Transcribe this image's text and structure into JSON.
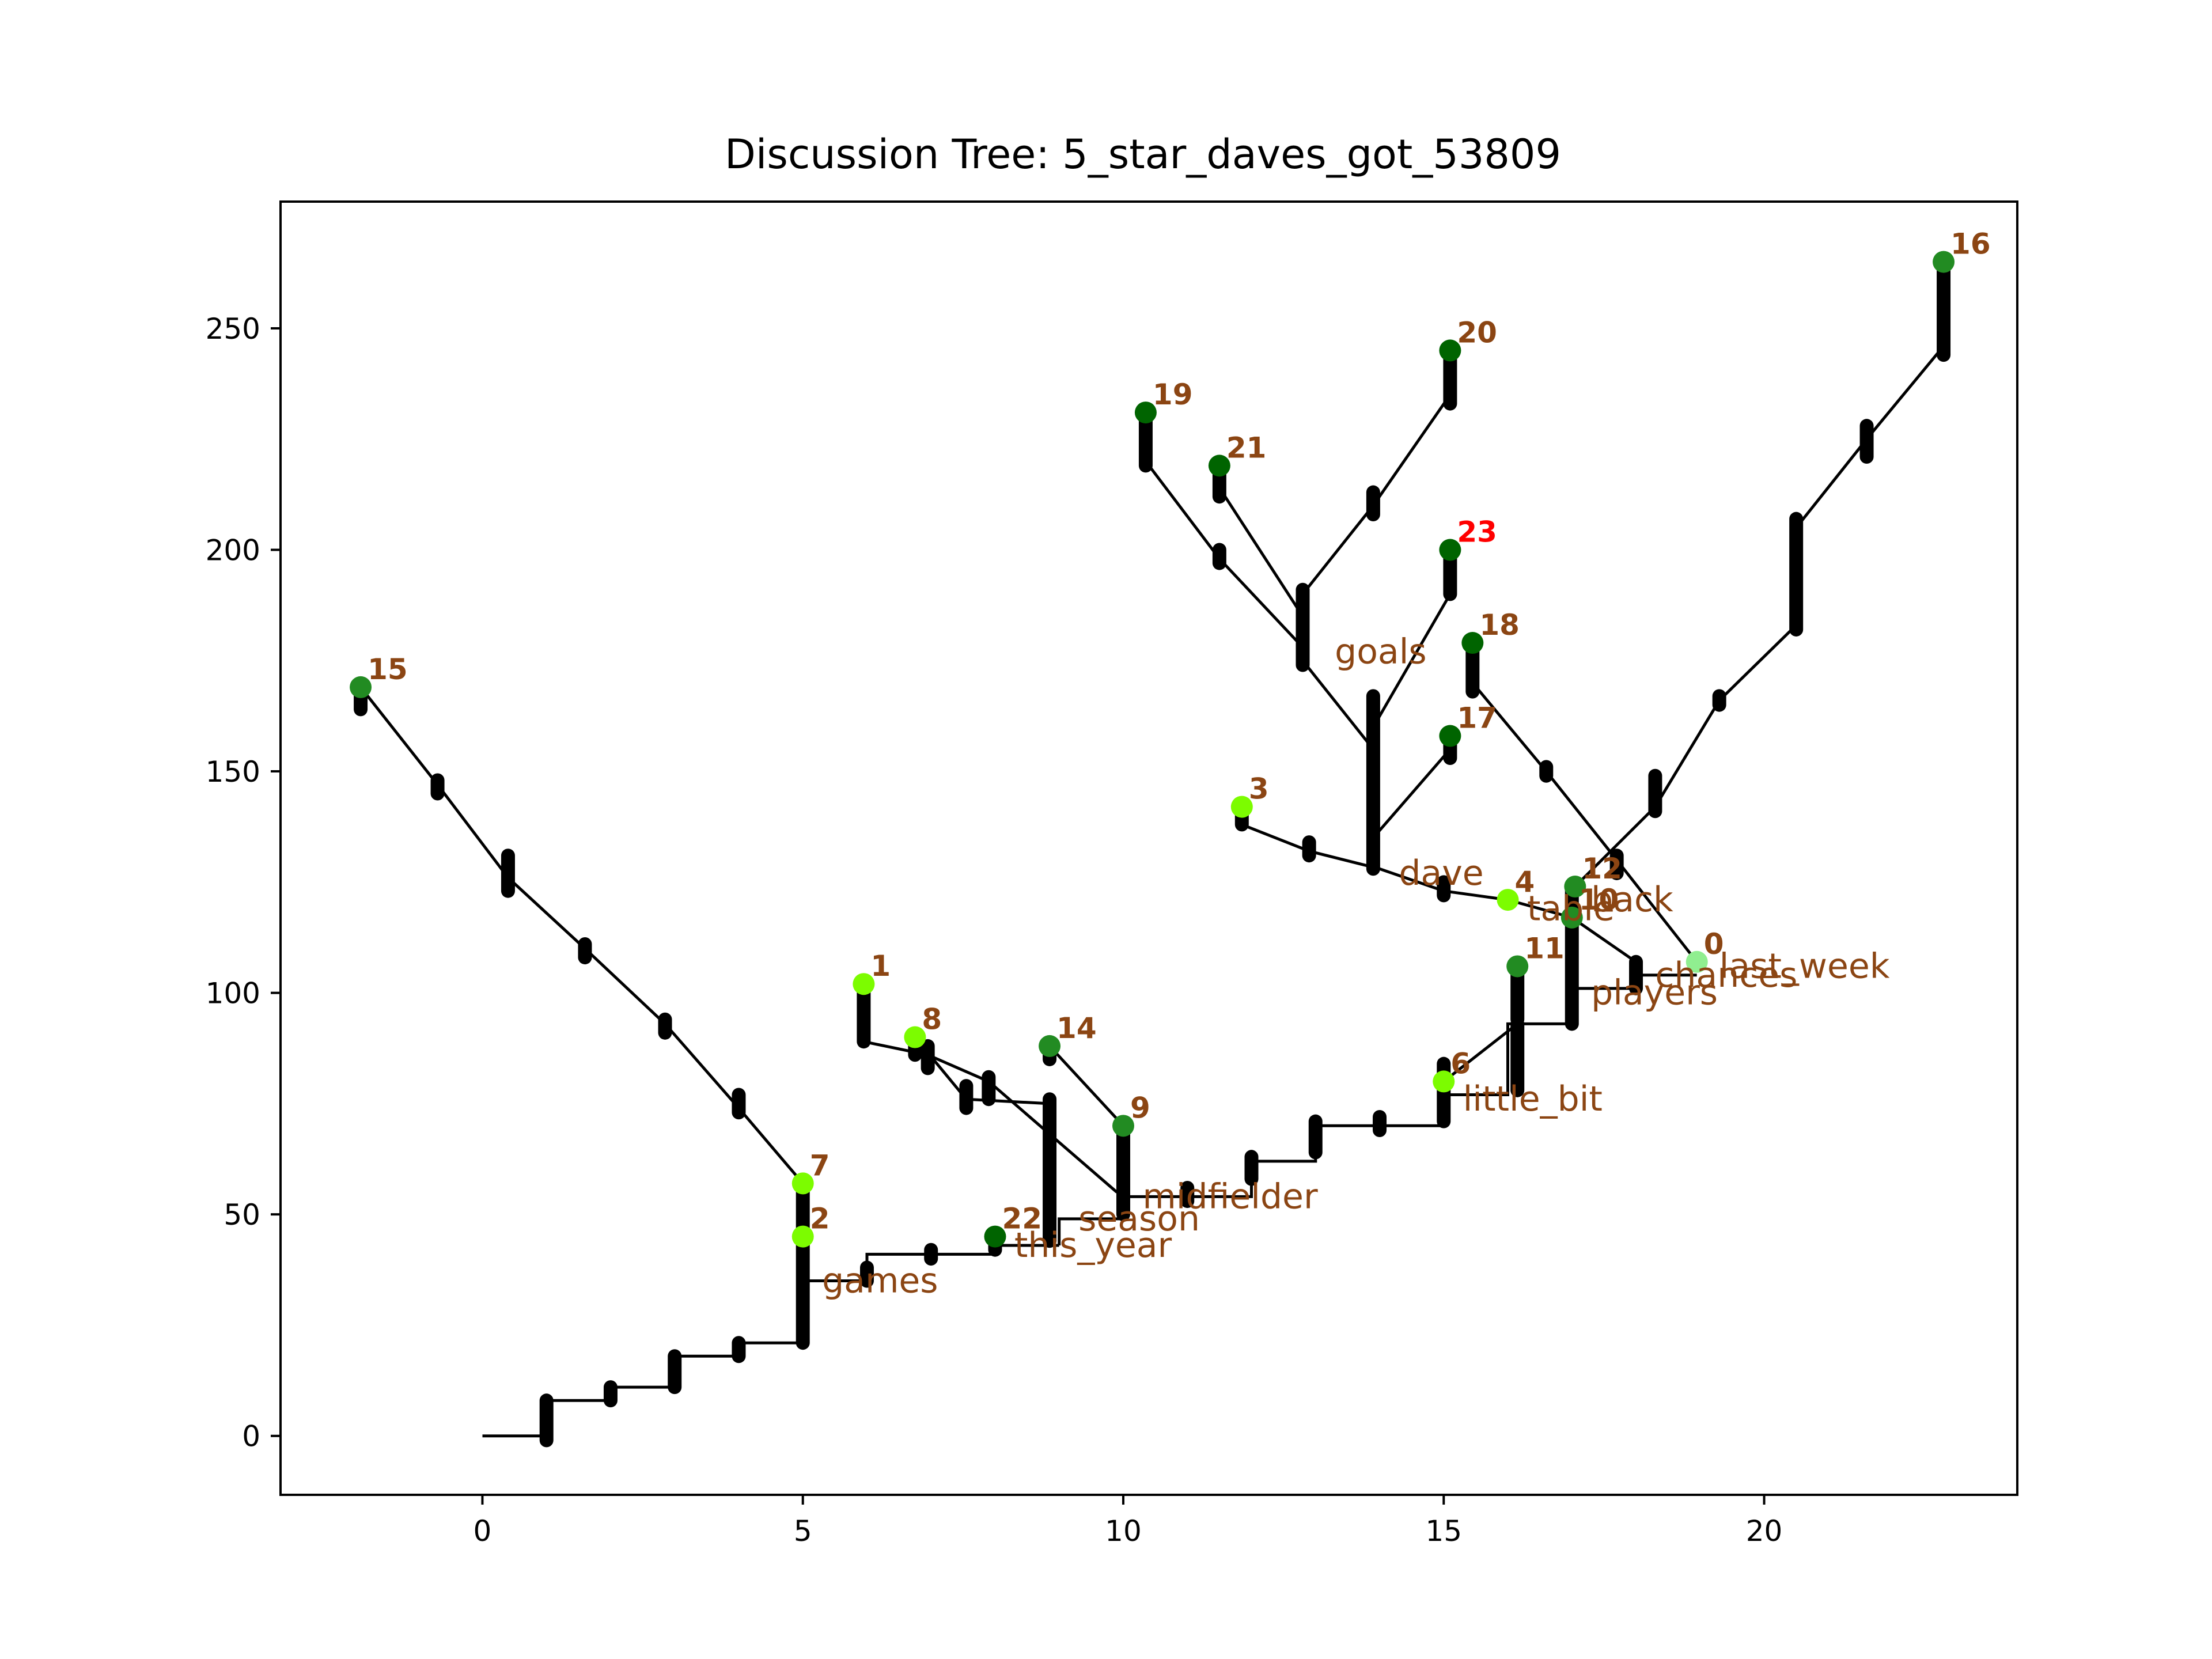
{
  "chart_data": {
    "type": "scatter",
    "title": "Discussion Tree: 5_star_daves_got_53809",
    "xlabel": "",
    "ylabel": "",
    "xlim": [
      -3.15,
      23.95
    ],
    "ylim": [
      -13.3,
      278.6
    ],
    "xticks": [
      0,
      5,
      10,
      15,
      20
    ],
    "yticks": [
      0,
      50,
      100,
      150,
      200,
      250
    ],
    "grid": false,
    "colors": {
      "edge": "#000000",
      "label_brown": "#8b4513",
      "label_red": "#ff0000",
      "light_green": "#7cfc00",
      "mid_green": "#228b22",
      "dark_green": "#006400",
      "pale_green": "#90ee90"
    },
    "nodes": [
      {
        "label": "0",
        "x": 18.95,
        "y": 107,
        "color": "#90ee90",
        "label_color": "#8b4513"
      },
      {
        "label": "1",
        "x": 5.95,
        "y": 102,
        "color": "#7cfc00",
        "label_color": "#8b4513"
      },
      {
        "label": "2",
        "x": 5.0,
        "y": 45,
        "color": "#7cfc00",
        "label_color": "#8b4513"
      },
      {
        "label": "3",
        "x": 11.85,
        "y": 142,
        "color": "#7cfc00",
        "label_color": "#8b4513"
      },
      {
        "label": "4",
        "x": 16.0,
        "y": 121,
        "color": "#7cfc00",
        "label_color": "#8b4513"
      },
      {
        "label": "6",
        "x": 15.0,
        "y": 80,
        "color": "#7cfc00",
        "label_color": "#8b4513"
      },
      {
        "label": "7",
        "x": 5.0,
        "y": 57,
        "color": "#7cfc00",
        "label_color": "#8b4513"
      },
      {
        "label": "8",
        "x": 6.75,
        "y": 90,
        "color": "#7cfc00",
        "label_color": "#8b4513"
      },
      {
        "label": "9",
        "x": 10.0,
        "y": 70,
        "color": "#228b22",
        "label_color": "#8b4513"
      },
      {
        "label": "10",
        "x": 17.0,
        "y": 117,
        "color": "#228b22",
        "label_color": "#8b4513"
      },
      {
        "label": "11",
        "x": 16.15,
        "y": 106,
        "color": "#228b22",
        "label_color": "#8b4513"
      },
      {
        "label": "12",
        "x": 17.05,
        "y": 124,
        "color": "#228b22",
        "label_color": "#8b4513"
      },
      {
        "label": "14",
        "x": 8.85,
        "y": 88,
        "color": "#228b22",
        "label_color": "#8b4513"
      },
      {
        "label": "15",
        "x": -1.9,
        "y": 169,
        "color": "#228b22",
        "label_color": "#8b4513"
      },
      {
        "label": "16",
        "x": 22.8,
        "y": 265,
        "color": "#228b22",
        "label_color": "#8b4513"
      },
      {
        "label": "17",
        "x": 15.1,
        "y": 158,
        "color": "#006400",
        "label_color": "#8b4513"
      },
      {
        "label": "18",
        "x": 15.45,
        "y": 179,
        "color": "#006400",
        "label_color": "#8b4513"
      },
      {
        "label": "19",
        "x": 10.35,
        "y": 231,
        "color": "#006400",
        "label_color": "#8b4513"
      },
      {
        "label": "20",
        "x": 15.1,
        "y": 245,
        "color": "#006400",
        "label_color": "#8b4513"
      },
      {
        "label": "21",
        "x": 11.5,
        "y": 219,
        "color": "#006400",
        "label_color": "#8b4513"
      },
      {
        "label": "22",
        "x": 8.0,
        "y": 45,
        "color": "#006400",
        "label_color": "#8b4513"
      },
      {
        "label": "23",
        "x": 15.1,
        "y": 200,
        "color": "#006400",
        "label_color": "#ff0000"
      }
    ],
    "word_labels": [
      {
        "text": "games",
        "x": 5.3,
        "y": 35
      },
      {
        "text": "this_year",
        "x": 8.3,
        "y": 43
      },
      {
        "text": "season",
        "x": 9.3,
        "y": 49
      },
      {
        "text": "midfielder",
        "x": 10.3,
        "y": 54
      },
      {
        "text": "little_bit",
        "x": 15.3,
        "y": 76
      },
      {
        "text": "players",
        "x": 17.3,
        "y": 100
      },
      {
        "text": "chances",
        "x": 18.3,
        "y": 104
      },
      {
        "text": "last_week",
        "x": 19.3,
        "y": 106
      },
      {
        "text": "table",
        "x": 16.3,
        "y": 119
      },
      {
        "text": "back",
        "x": 17.3,
        "y": 121
      },
      {
        "text": "dave",
        "x": 14.3,
        "y": 127
      },
      {
        "text": "goals",
        "x": 13.3,
        "y": 177
      }
    ],
    "edges": [
      [
        [
          0,
          0
        ],
        [
          1,
          0
        ],
        [
          1,
          8
        ],
        [
          2,
          8
        ],
        [
          2,
          11
        ],
        [
          3,
          11
        ],
        [
          3,
          18
        ],
        [
          4,
          18
        ],
        [
          4,
          21
        ],
        [
          5,
          21
        ]
      ],
      [
        [
          5,
          21
        ],
        [
          5,
          45
        ]
      ],
      [
        [
          5,
          35
        ],
        [
          6,
          35
        ]
      ],
      [
        [
          6,
          35
        ],
        [
          6,
          41
        ],
        [
          7,
          41
        ],
        [
          8,
          41
        ],
        [
          8,
          45
        ]
      ],
      [
        [
          8,
          43
        ],
        [
          9,
          43
        ]
      ],
      [
        [
          9,
          43
        ],
        [
          9,
          49
        ],
        [
          10,
          49
        ],
        [
          10,
          54
        ],
        [
          11,
          54
        ]
      ],
      [
        [
          11,
          54
        ],
        [
          12,
          54
        ],
        [
          12,
          62
        ],
        [
          13,
          62
        ],
        [
          13,
          70
        ],
        [
          14,
          70
        ],
        [
          15,
          70
        ],
        [
          15,
          77
        ],
        [
          16,
          77
        ],
        [
          16,
          93
        ],
        [
          17,
          93
        ],
        [
          17,
          121
        ]
      ],
      [
        [
          17,
          101
        ],
        [
          18,
          101
        ]
      ],
      [
        [
          18,
          104
        ],
        [
          18.95,
          104
        ]
      ],
      [
        [
          5,
          45
        ],
        [
          5,
          57
        ]
      ],
      [
        [
          5,
          57
        ],
        [
          4.0,
          74
        ],
        [
          2.85,
          93
        ],
        [
          1.6,
          110
        ],
        [
          0.4,
          126
        ],
        [
          -0.7,
          147
        ],
        [
          -1.9,
          169
        ]
      ],
      [
        [
          5.95,
          102
        ],
        [
          5.95,
          89
        ],
        [
          6.95,
          86
        ],
        [
          7.9,
          80
        ],
        [
          9.9,
          55
        ]
      ],
      [
        [
          6.75,
          90
        ],
        [
          7.55,
          76
        ],
        [
          8.85,
          75
        ]
      ],
      [
        [
          8.85,
          75
        ],
        [
          8.85,
          65
        ]
      ],
      [
        [
          8.85,
          88
        ],
        [
          10.0,
          70
        ]
      ],
      [
        [
          10.0,
          70
        ],
        [
          10.0,
          50
        ]
      ],
      [
        [
          11.85,
          142
        ],
        [
          11.85,
          138
        ],
        [
          12.9,
          132
        ],
        [
          14.0,
          128
        ],
        [
          15.0,
          123
        ],
        [
          16.0,
          121
        ]
      ],
      [
        [
          16.0,
          121
        ],
        [
          17.0,
          117
        ]
      ],
      [
        [
          17.0,
          117
        ],
        [
          18.0,
          107
        ]
      ],
      [
        [
          15.0,
          80
        ],
        [
          16.15,
          93
        ]
      ],
      [
        [
          16.15,
          106
        ],
        [
          16.15,
          93
        ]
      ],
      [
        [
          13.9,
          128
        ],
        [
          13.9,
          167
        ]
      ],
      [
        [
          13.9,
          135
        ],
        [
          15.1,
          155
        ]
      ],
      [
        [
          15.1,
          155
        ],
        [
          15.1,
          158
        ]
      ],
      [
        [
          13.9,
          160
        ],
        [
          15.1,
          190
        ]
      ],
      [
        [
          15.1,
          190
        ],
        [
          15.1,
          200
        ]
      ],
      [
        [
          13.9,
          155
        ],
        [
          12.8,
          175
        ]
      ],
      [
        [
          12.8,
          175
        ],
        [
          12.8,
          190
        ]
      ],
      [
        [
          12.8,
          178
        ],
        [
          11.5,
          198
        ],
        [
          10.35,
          220
        ]
      ],
      [
        [
          10.35,
          220
        ],
        [
          10.35,
          231
        ]
      ],
      [
        [
          12.8,
          185
        ],
        [
          11.5,
          214
        ]
      ],
      [
        [
          11.5,
          214
        ],
        [
          11.5,
          219
        ]
      ],
      [
        [
          12.8,
          190
        ],
        [
          13.9,
          210
        ],
        [
          15.1,
          235
        ]
      ],
      [
        [
          15.1,
          235
        ],
        [
          15.1,
          245
        ]
      ],
      [
        [
          15.45,
          179
        ],
        [
          15.45,
          170
        ],
        [
          16.6,
          150
        ],
        [
          17.7,
          130
        ],
        [
          18.95,
          107
        ]
      ],
      [
        [
          17.05,
          124
        ],
        [
          18.3,
          142
        ],
        [
          19.3,
          166
        ],
        [
          20.5,
          183
        ]
      ],
      [
        [
          20.5,
          183
        ],
        [
          20.5,
          205
        ]
      ],
      [
        [
          20.5,
          205
        ],
        [
          21.6,
          225
        ],
        [
          22.8,
          246
        ]
      ],
      [
        [
          22.8,
          246
        ],
        [
          22.8,
          265
        ]
      ]
    ],
    "thick_segments": [
      [
        1,
        -1,
        1,
        8
      ],
      [
        2,
        8,
        2,
        11
      ],
      [
        3,
        11,
        3,
        18
      ],
      [
        4,
        18,
        4,
        21
      ],
      [
        5,
        21,
        5,
        57
      ],
      [
        6,
        35,
        6,
        38
      ],
      [
        7,
        40,
        7,
        42
      ],
      [
        8,
        42,
        8,
        45
      ],
      [
        5.95,
        89,
        5.95,
        102
      ],
      [
        6.75,
        86,
        6.75,
        89
      ],
      [
        6.95,
        83,
        6.95,
        88
      ],
      [
        7.55,
        74,
        7.55,
        79
      ],
      [
        7.9,
        76,
        7.9,
        81
      ],
      [
        8.85,
        44,
        8.85,
        76
      ],
      [
        8.85,
        85,
        8.85,
        88
      ],
      [
        10.0,
        50,
        10.0,
        70
      ],
      [
        11.0,
        53,
        11.0,
        56
      ],
      [
        11.85,
        138,
        11.85,
        142
      ],
      [
        12.0,
        58,
        12.0,
        63
      ],
      [
        12.9,
        131,
        12.9,
        134
      ],
      [
        13.0,
        64,
        13.0,
        71
      ],
      [
        14.0,
        69,
        14.0,
        72
      ],
      [
        15.0,
        71,
        15.0,
        84
      ],
      [
        15.0,
        122,
        15.0,
        125
      ],
      [
        16.15,
        78,
        16.15,
        93
      ],
      [
        16.15,
        94,
        16.15,
        106
      ],
      [
        17.0,
        93,
        17.0,
        124
      ],
      [
        18.0,
        101,
        18.0,
        107
      ],
      [
        17.7,
        127,
        17.7,
        131
      ],
      [
        -1.9,
        164,
        -1.9,
        169
      ],
      [
        -0.7,
        145,
        -0.7,
        148
      ],
      [
        0.4,
        123,
        0.4,
        131
      ],
      [
        1.6,
        108,
        1.6,
        111
      ],
      [
        2.85,
        91,
        2.85,
        94
      ],
      [
        4.0,
        73,
        4.0,
        77
      ],
      [
        13.9,
        128,
        13.9,
        167
      ],
      [
        15.1,
        153,
        15.1,
        158
      ],
      [
        15.1,
        190,
        15.1,
        200
      ],
      [
        12.8,
        174,
        12.8,
        191
      ],
      [
        11.5,
        197,
        11.5,
        200
      ],
      [
        10.35,
        219,
        10.35,
        231
      ],
      [
        11.5,
        212,
        11.5,
        219
      ],
      [
        13.9,
        208,
        13.9,
        213
      ],
      [
        15.1,
        233,
        15.1,
        245
      ],
      [
        15.45,
        168,
        15.45,
        179
      ],
      [
        16.6,
        149,
        16.6,
        151
      ],
      [
        18.3,
        141,
        18.3,
        149
      ],
      [
        19.3,
        165,
        19.3,
        167
      ],
      [
        20.5,
        182,
        20.5,
        207
      ],
      [
        21.6,
        221,
        21.6,
        228
      ],
      [
        22.8,
        244,
        22.8,
        265
      ]
    ]
  }
}
